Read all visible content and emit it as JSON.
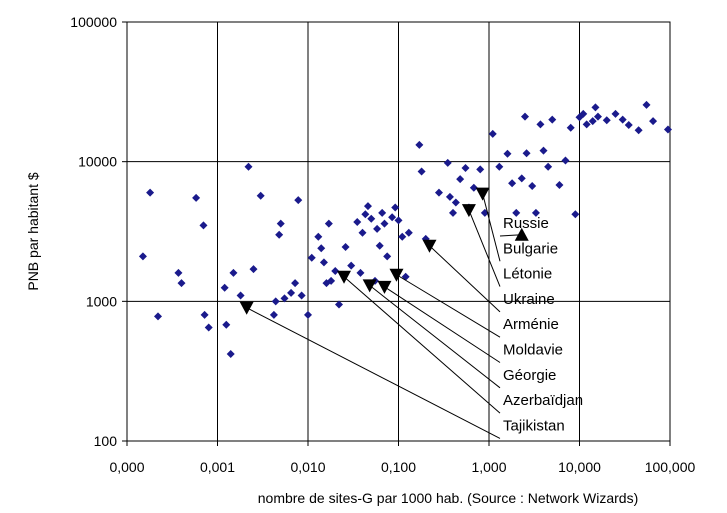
{
  "chart_data": {
    "type": "scatter",
    "title": "",
    "xlabel": "nombre de sites-G par 1000 hab. (Source : Network Wizards)",
    "ylabel": "PNB par habitant $",
    "x_scale": "log",
    "y_scale": "log",
    "xlim": [
      0.0001,
      100
    ],
    "ylim": [
      100,
      100000
    ],
    "grid": true,
    "x_tick_labels": [
      "0,000",
      "0,001",
      "0,010",
      "0,100",
      "1,000",
      "10,000",
      "100,000"
    ],
    "y_tick_labels": [
      "100",
      "1000",
      "10000",
      "100000"
    ],
    "colors": {
      "series": "#1a1a8c",
      "highlight": "#000000",
      "grid": "#000000"
    },
    "series": [
      {
        "marker": "diamond",
        "points": [
          [
            0.00015,
            2100
          ],
          [
            0.00018,
            6000
          ],
          [
            0.00022,
            780
          ],
          [
            0.00037,
            1600
          ],
          [
            0.0004,
            1350
          ],
          [
            0.00058,
            5500
          ],
          [
            0.0007,
            3500
          ],
          [
            0.00072,
            800
          ],
          [
            0.0008,
            650
          ],
          [
            0.0012,
            1250
          ],
          [
            0.00125,
            680
          ],
          [
            0.0014,
            420
          ],
          [
            0.0015,
            1600
          ],
          [
            0.0018,
            1100
          ],
          [
            0.0022,
            9200
          ],
          [
            0.0025,
            1700
          ],
          [
            0.003,
            5700
          ],
          [
            0.0042,
            800
          ],
          [
            0.0044,
            1000
          ],
          [
            0.0048,
            3000
          ],
          [
            0.005,
            3600
          ],
          [
            0.0055,
            1050
          ],
          [
            0.0065,
            1150
          ],
          [
            0.0072,
            1350
          ],
          [
            0.0078,
            5300
          ],
          [
            0.0085,
            1100
          ],
          [
            0.01,
            800
          ],
          [
            0.011,
            2050
          ],
          [
            0.013,
            2900
          ],
          [
            0.014,
            2400
          ],
          [
            0.015,
            1900
          ],
          [
            0.016,
            1350
          ],
          [
            0.017,
            3600
          ],
          [
            0.018,
            1400
          ],
          [
            0.02,
            1650
          ],
          [
            0.022,
            950
          ],
          [
            0.026,
            2450
          ],
          [
            0.03,
            1800
          ],
          [
            0.035,
            3700
          ],
          [
            0.038,
            1600
          ],
          [
            0.04,
            3100
          ],
          [
            0.043,
            4200
          ],
          [
            0.046,
            4800
          ],
          [
            0.05,
            3900
          ],
          [
            0.055,
            1400
          ],
          [
            0.058,
            3300
          ],
          [
            0.062,
            2500
          ],
          [
            0.066,
            4300
          ],
          [
            0.07,
            3600
          ],
          [
            0.075,
            2100
          ],
          [
            0.085,
            4000
          ],
          [
            0.092,
            4700
          ],
          [
            0.1,
            3800
          ],
          [
            0.11,
            2900
          ],
          [
            0.12,
            1500
          ],
          [
            0.13,
            3100
          ],
          [
            0.17,
            13200
          ],
          [
            0.18,
            8500
          ],
          [
            0.2,
            2800
          ],
          [
            0.28,
            6000
          ],
          [
            0.35,
            9800
          ],
          [
            0.37,
            5600
          ],
          [
            0.4,
            4300
          ],
          [
            0.43,
            5100
          ],
          [
            0.48,
            7500
          ],
          [
            0.55,
            9000
          ],
          [
            0.6,
            4700
          ],
          [
            0.68,
            6500
          ],
          [
            0.8,
            8800
          ],
          [
            0.9,
            4300
          ],
          [
            1.1,
            15800
          ],
          [
            1.3,
            9200
          ],
          [
            1.6,
            11400
          ],
          [
            1.8,
            7000
          ],
          [
            2.0,
            4300
          ],
          [
            2.3,
            7600
          ],
          [
            2.5,
            21000
          ],
          [
            2.6,
            11500
          ],
          [
            3.0,
            6700
          ],
          [
            3.3,
            4300
          ],
          [
            3.7,
            18500
          ],
          [
            4.0,
            12000
          ],
          [
            4.5,
            9200
          ],
          [
            5.0,
            20000
          ],
          [
            6.0,
            6800
          ],
          [
            7.0,
            10200
          ],
          [
            8.0,
            17500
          ],
          [
            9.0,
            4200
          ],
          [
            10.0,
            20800
          ],
          [
            11.0,
            22000
          ],
          [
            12.0,
            18500
          ],
          [
            14.0,
            19500
          ],
          [
            15.0,
            24500
          ],
          [
            16.0,
            21000
          ],
          [
            20.0,
            19800
          ],
          [
            25.0,
            22000
          ],
          [
            30.0,
            20000
          ],
          [
            35.0,
            18300
          ],
          [
            45.0,
            16800
          ],
          [
            55.0,
            25500
          ],
          [
            65.0,
            19500
          ],
          [
            95.0,
            17000
          ]
        ]
      },
      {
        "marker": "triangle-down",
        "points": [
          [
            0.0021,
            900
          ],
          [
            0.025,
            1500
          ],
          [
            0.048,
            1300
          ],
          [
            0.07,
            1270
          ],
          [
            0.095,
            1550
          ],
          [
            0.22,
            2500
          ],
          [
            0.6,
            4500
          ],
          [
            0.85,
            5900
          ]
        ]
      },
      {
        "marker": "triangle-up",
        "points": [
          [
            2.3,
            3000
          ]
        ]
      }
    ],
    "annotations": [
      {
        "label": "Russie",
        "target": [
          2.3,
          3000
        ]
      },
      {
        "label": "Bulgarie",
        "target": [
          0.85,
          5900
        ]
      },
      {
        "label": "Létonie",
        "target": [
          0.6,
          4500
        ]
      },
      {
        "label": "Ukraine",
        "target": [
          0.22,
          2500
        ]
      },
      {
        "label": "Arménie",
        "target": [
          0.095,
          1550
        ]
      },
      {
        "label": "Moldavie",
        "target": [
          0.07,
          1270
        ]
      },
      {
        "label": "Géorgie",
        "target": [
          0.048,
          1300
        ]
      },
      {
        "label": "Azerbaïdjan",
        "target": [
          0.025,
          1500
        ]
      },
      {
        "label": "Tajikistan",
        "target": [
          0.0021,
          900
        ]
      }
    ]
  }
}
